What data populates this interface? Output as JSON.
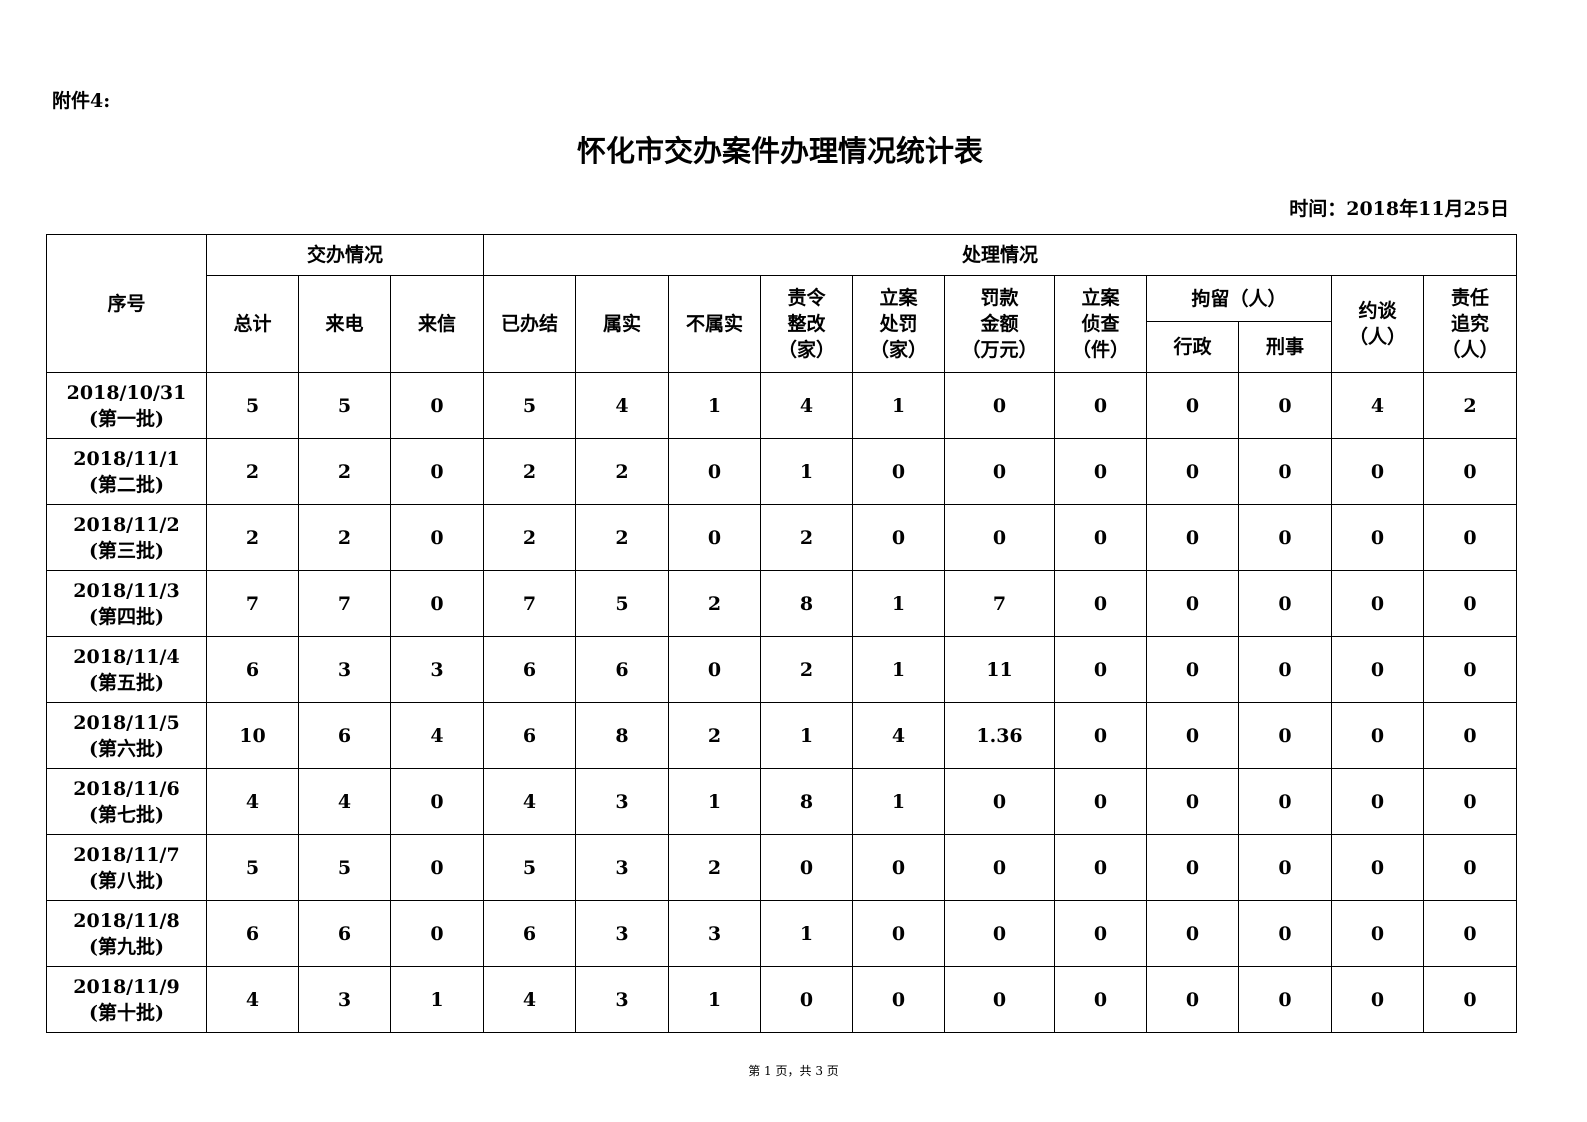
{
  "attachment_label": "附件4:",
  "title": "怀化市交办案件办理情况统计表",
  "date_label": "时间：2018年11月25日",
  "headers": {
    "seq": "序号",
    "assigned_group": "交办情况",
    "handling_group": "处理情况",
    "total": "总计",
    "phone": "来电",
    "letter": "来信",
    "closed": "已办结",
    "true": "属实",
    "not_true": "不属实",
    "rectify": "责令\n整改\n（家）",
    "penalty": "立案\n处罚\n（家）",
    "fine": "罚款\n金额\n（万元）",
    "investigation": "立案\n侦查\n（件）",
    "detention": "拘留（人）",
    "admin": "行政",
    "criminal": "刑事",
    "interview": "约谈\n（人）",
    "accountability": "责任\n追究\n（人）"
  },
  "rows": [
    {
      "seq": "2018/10/31\n(第一批)",
      "v": [
        "5",
        "5",
        "0",
        "5",
        "4",
        "1",
        "4",
        "1",
        "0",
        "0",
        "0",
        "0",
        "4",
        "2"
      ]
    },
    {
      "seq": "2018/11/1\n(第二批)",
      "v": [
        "2",
        "2",
        "0",
        "2",
        "2",
        "0",
        "1",
        "0",
        "0",
        "0",
        "0",
        "0",
        "0",
        "0"
      ]
    },
    {
      "seq": "2018/11/2\n(第三批)",
      "v": [
        "2",
        "2",
        "0",
        "2",
        "2",
        "0",
        "2",
        "0",
        "0",
        "0",
        "0",
        "0",
        "0",
        "0"
      ]
    },
    {
      "seq": "2018/11/3\n(第四批)",
      "v": [
        "7",
        "7",
        "0",
        "7",
        "5",
        "2",
        "8",
        "1",
        "7",
        "0",
        "0",
        "0",
        "0",
        "0"
      ]
    },
    {
      "seq": "2018/11/4\n(第五批)",
      "v": [
        "6",
        "3",
        "3",
        "6",
        "6",
        "0",
        "2",
        "1",
        "11",
        "0",
        "0",
        "0",
        "0",
        "0"
      ]
    },
    {
      "seq": "2018/11/5\n(第六批)",
      "v": [
        "10",
        "6",
        "4",
        "6",
        "8",
        "2",
        "1",
        "4",
        "1.36",
        "0",
        "0",
        "0",
        "0",
        "0"
      ]
    },
    {
      "seq": "2018/11/6\n(第七批)",
      "v": [
        "4",
        "4",
        "0",
        "4",
        "3",
        "1",
        "8",
        "1",
        "0",
        "0",
        "0",
        "0",
        "0",
        "0"
      ]
    },
    {
      "seq": "2018/11/7\n(第八批)",
      "v": [
        "5",
        "5",
        "0",
        "5",
        "3",
        "2",
        "0",
        "0",
        "0",
        "0",
        "0",
        "0",
        "0",
        "0"
      ]
    },
    {
      "seq": "2018/11/8\n(第九批)",
      "v": [
        "6",
        "6",
        "0",
        "6",
        "3",
        "3",
        "1",
        "0",
        "0",
        "0",
        "0",
        "0",
        "0",
        "0"
      ]
    },
    {
      "seq": "2018/11/9\n(第十批)",
      "v": [
        "4",
        "3",
        "1",
        "4",
        "3",
        "1",
        "0",
        "0",
        "0",
        "0",
        "0",
        "0",
        "0",
        "0"
      ]
    }
  ],
  "footer": "第 1 页，共 3 页"
}
